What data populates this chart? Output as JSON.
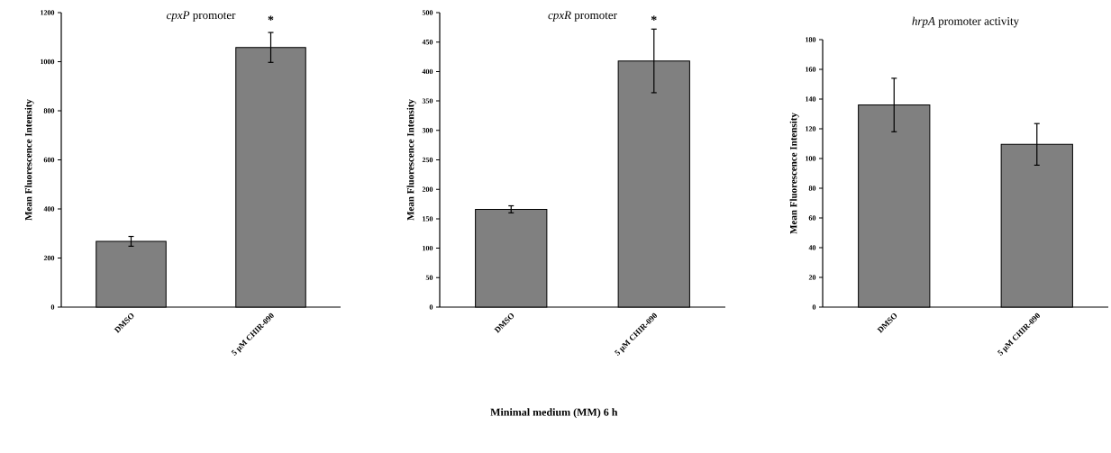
{
  "chart_data": [
    {
      "type": "bar",
      "title": "*cpxP* promoter",
      "ylabel": "Mean Fluorescence Intensity",
      "categories": [
        "DMSO",
        "5 µM CHIR-090"
      ],
      "values": [
        268,
        1058
      ],
      "errors": [
        20,
        61
      ],
      "color": "#808080",
      "ylim": [
        0,
        1200
      ],
      "yticks": [
        0,
        200,
        400,
        600,
        800,
        1000,
        1200
      ],
      "annotations": [
        "*"
      ]
    },
    {
      "type": "bar",
      "title": "*cpxR* promoter",
      "ylabel": "Mean Fluorescence Intensity",
      "categories": [
        "DMSO",
        "5 µM CHIR-090"
      ],
      "values": [
        166,
        418
      ],
      "errors": [
        6,
        54
      ],
      "color": "#808080",
      "ylim": [
        0,
        500
      ],
      "yticks": [
        0,
        50,
        100,
        150,
        200,
        250,
        300,
        350,
        400,
        450,
        500
      ],
      "annotations": [
        "*",
        "Minimal medium (MM) 6 h"
      ]
    },
    {
      "type": "bar",
      "title": "*hrpA* promoter activity",
      "ylabel": "Mean Fluorescence Intensity",
      "categories": [
        "DMSO",
        "5 µM CHIR-090"
      ],
      "values": [
        136,
        109.5
      ],
      "errors": [
        18,
        14
      ],
      "color": "#808080",
      "ylim": [
        0,
        180
      ],
      "yticks": [
        0,
        20,
        40,
        60,
        80,
        100,
        120,
        140,
        160,
        180
      ]
    }
  ]
}
